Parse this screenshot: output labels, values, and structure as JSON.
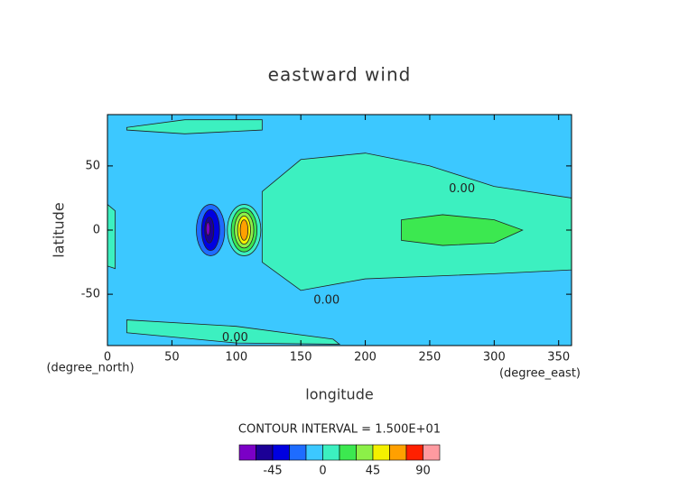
{
  "chart_data": {
    "type": "contour",
    "title": "eastward wind",
    "x_label": "longitude",
    "y_label": "latitude",
    "x_unit": "(degree_east)",
    "y_unit": "(degree_north)",
    "xlim": [
      0,
      360
    ],
    "ylim": [
      -90,
      90
    ],
    "xticks": [
      0,
      50,
      100,
      150,
      200,
      250,
      300,
      350
    ],
    "yticks": [
      -50,
      0,
      50
    ],
    "background_value": -15,
    "contour_interval_label": "CONTOUR INTERVAL = 1.500E+01",
    "levels": [
      -75,
      -60,
      -45,
      -30,
      -15,
      0,
      15,
      30,
      45,
      60,
      75,
      90,
      105
    ],
    "level_colors": [
      "#7b00c6",
      "#1c0096",
      "#0000e0",
      "#1e6cff",
      "#3cc8ff",
      "#3cf0c0",
      "#3ce850",
      "#8cf048",
      "#f4f000",
      "#ffa000",
      "#ff2000",
      "#ff9aa0"
    ],
    "colorbar_ticks": [
      -45,
      0,
      45,
      90
    ],
    "regions": [
      {
        "value": 0,
        "lon": [
          120,
          150,
          200,
          250,
          300,
          360,
          360,
          300,
          200,
          150,
          120
        ],
        "lat": [
          30,
          55,
          60,
          50,
          34,
          25,
          -31,
          -34,
          -38,
          -47,
          -25
        ]
      },
      {
        "value": 0,
        "lon": [
          15,
          60,
          120,
          120,
          60,
          15
        ],
        "lat": [
          80,
          86,
          86,
          78,
          75,
          78
        ]
      },
      {
        "value": 0,
        "lon": [
          15,
          100,
          175,
          180,
          100,
          15
        ],
        "lat": [
          -70,
          -75,
          -85,
          -89,
          -88,
          -80
        ]
      },
      {
        "value": 0,
        "lon": [
          0,
          6,
          6,
          0
        ],
        "lat": [
          20,
          15,
          -30,
          -28
        ]
      },
      {
        "value": 15,
        "lon": [
          228,
          260,
          300,
          322,
          300,
          260,
          228
        ],
        "lat": [
          8,
          12,
          8,
          0,
          -10,
          -12,
          -8
        ]
      }
    ],
    "features": [
      {
        "value": -30,
        "lon": 80,
        "lat": 0,
        "dlon": 11,
        "dlat": 20
      },
      {
        "value": -45,
        "lon": 80,
        "lat": 0,
        "dlon": 7,
        "dlat": 16
      },
      {
        "value": -60,
        "lon": 79,
        "lat": 0,
        "dlon": 3.5,
        "dlat": 10
      },
      {
        "value": -75,
        "lon": 78,
        "lat": 1,
        "dlon": 1.5,
        "dlat": 5
      },
      {
        "value": 0,
        "lon": 106,
        "lat": 0,
        "dlon": 13,
        "dlat": 20
      },
      {
        "value": 15,
        "lon": 106,
        "lat": 0,
        "dlon": 10,
        "dlat": 17
      },
      {
        "value": 30,
        "lon": 106,
        "lat": 0,
        "dlon": 7.5,
        "dlat": 14
      },
      {
        "value": 45,
        "lon": 106,
        "lat": 0,
        "dlon": 5,
        "dlat": 11
      },
      {
        "value": 60,
        "lon": 106,
        "lat": 0,
        "dlon": 3,
        "dlat": 8
      }
    ],
    "contour_labels": [
      {
        "text": "0.00",
        "lon": 275,
        "lat": 32
      },
      {
        "text": "0.00",
        "lon": 170,
        "lat": -55
      },
      {
        "text": "0.00",
        "lon": 99,
        "lat": -84
      }
    ]
  }
}
